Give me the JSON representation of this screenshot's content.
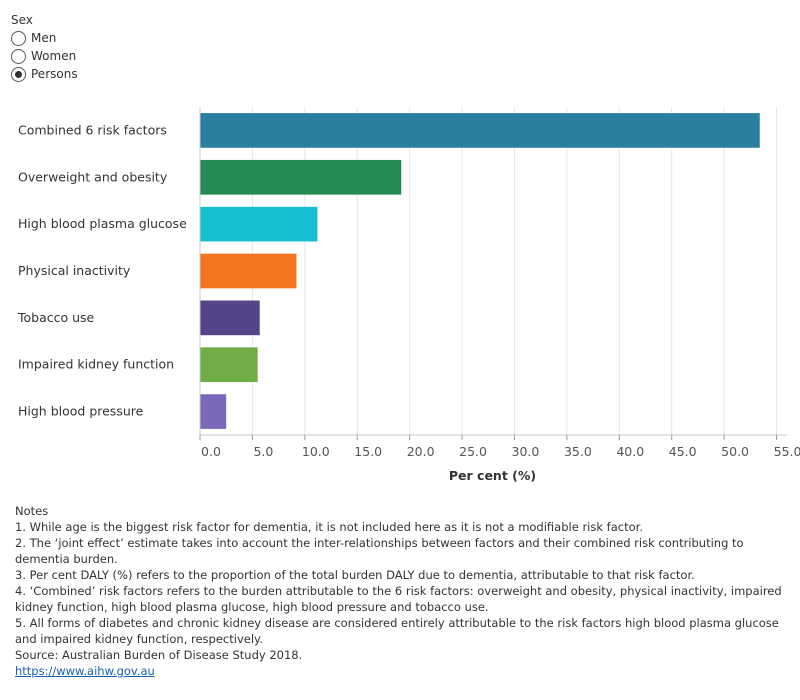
{
  "filter": {
    "title": "Sex",
    "options": [
      {
        "label": "Men",
        "checked": false
      },
      {
        "label": "Women",
        "checked": false
      },
      {
        "label": "Persons",
        "checked": true
      }
    ]
  },
  "chart_data": {
    "type": "bar",
    "orientation": "horizontal",
    "categories": [
      "Combined 6 risk factors",
      "Overweight and obesity",
      "High blood plasma glucose",
      "Physical inactivity",
      "Tobacco use",
      "Impaired kidney function",
      "High blood pressure"
    ],
    "values": [
      53.4,
      19.2,
      11.2,
      9.2,
      5.7,
      5.5,
      2.5
    ],
    "colors": [
      "#2a7f9e",
      "#238b53",
      "#17becf",
      "#f47521",
      "#554588",
      "#70ad47",
      "#7b68b8"
    ],
    "xlabel": "Per cent (%)",
    "xlim": [
      0,
      56
    ],
    "xticks": [
      "0.0",
      "5.0",
      "10.0",
      "15.0",
      "20.0",
      "25.0",
      "30.0",
      "35.0",
      "40.0",
      "45.0",
      "50.0",
      "55.0"
    ],
    "grid": true
  },
  "notes": {
    "lines": [
      "Notes",
      "1. While age is the biggest risk factor for dementia, it is not included here as it is not a modifiable risk factor.",
      "2. The ‘joint effect’ estimate takes into account the inter-relationships between factors and their combined risk contributing to dementia burden.",
      "3. Per cent DALY (%) refers to the proportion of the total burden DALY due to dementia, attributable to that risk factor.",
      "4. ‘Combined’ risk factors refers to the burden attributable to the 6 risk factors: overweight and obesity, physical inactivity, impaired kidney function, high blood plasma glucose, high blood pressure and tobacco use.",
      "5. All forms of diabetes and chronic kidney disease are considered entirely attributable to the risk factors high blood plasma glucose and impaired kidney function, respectively.",
      "Source: Australian Burden of Disease Study 2018."
    ],
    "link": "https://www.aihw.gov.au"
  }
}
